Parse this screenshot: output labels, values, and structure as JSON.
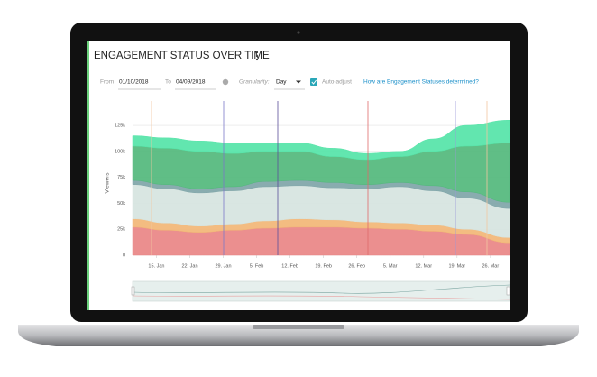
{
  "ui": {
    "from_label": "From",
    "from_value": "01/10/2018",
    "to_label": "To",
    "to_value": "04/09/2018",
    "granularity_label": "Granularity:",
    "granularity_value": "Day",
    "auto_adjust": "Auto-adjust",
    "link": "How are Engagement Statuses determined?"
  },
  "chart_data": {
    "type": "area",
    "stacked": true,
    "title": "ENGAGEMENT STATUS OVER TIME",
    "y_label": "Viewers",
    "x": [
      10,
      17,
      24,
      31,
      38,
      45,
      52,
      59,
      66,
      73,
      80,
      89
    ],
    "xlim": [
      10,
      89
    ],
    "xticks": [
      {
        "value": 15,
        "label": "15. Jan"
      },
      {
        "value": 22,
        "label": "22. Jan"
      },
      {
        "value": 29,
        "label": "29. Jan"
      },
      {
        "value": 36,
        "label": "5. Feb"
      },
      {
        "value": 43,
        "label": "12. Feb"
      },
      {
        "value": 50,
        "label": "19. Feb"
      },
      {
        "value": 57,
        "label": "26. Feb"
      },
      {
        "value": 64,
        "label": "5. Mar"
      },
      {
        "value": 71,
        "label": "12. Mar"
      },
      {
        "value": 78,
        "label": "19. Mar"
      },
      {
        "value": 85,
        "label": "26. Mar"
      }
    ],
    "ylim": [
      0,
      135000
    ],
    "yticks": [
      0,
      {
        "value": 25000,
        "label": "25k"
      },
      {
        "value": 50000,
        "label": "50k"
      },
      {
        "value": 75000,
        "label": "75k"
      },
      {
        "value": 100000,
        "label": "100k"
      },
      {
        "value": 125000,
        "label": "125k"
      }
    ],
    "grid": true,
    "series": [
      {
        "color": "#e98686",
        "values": [
          27000,
          24000,
          22000,
          24000,
          26000,
          27000,
          27000,
          26000,
          25000,
          23000,
          20000,
          12000
        ]
      },
      {
        "color": "#f2b676",
        "values": [
          8000,
          7000,
          6000,
          6000,
          7000,
          8000,
          7000,
          6000,
          6000,
          6000,
          5000,
          5000
        ]
      },
      {
        "color": "#d6e4df",
        "values": [
          33000,
          33000,
          32000,
          32000,
          33000,
          32000,
          31000,
          32000,
          35000,
          33000,
          30000,
          28000
        ]
      },
      {
        "color": "#7fa5a8",
        "values": [
          4000,
          4000,
          4000,
          4000,
          5000,
          5000,
          5000,
          4000,
          4000,
          5000,
          6000,
          6000
        ]
      },
      {
        "color": "#52b97c",
        "values": [
          33000,
          35000,
          36000,
          32000,
          29000,
          28000,
          25000,
          24000,
          25000,
          33000,
          44000,
          57000
        ]
      },
      {
        "color": "#55e4a8",
        "values": [
          10000,
          10000,
          10000,
          10000,
          8000,
          8000,
          8000,
          6000,
          5000,
          12000,
          20000,
          22000
        ]
      }
    ]
  }
}
